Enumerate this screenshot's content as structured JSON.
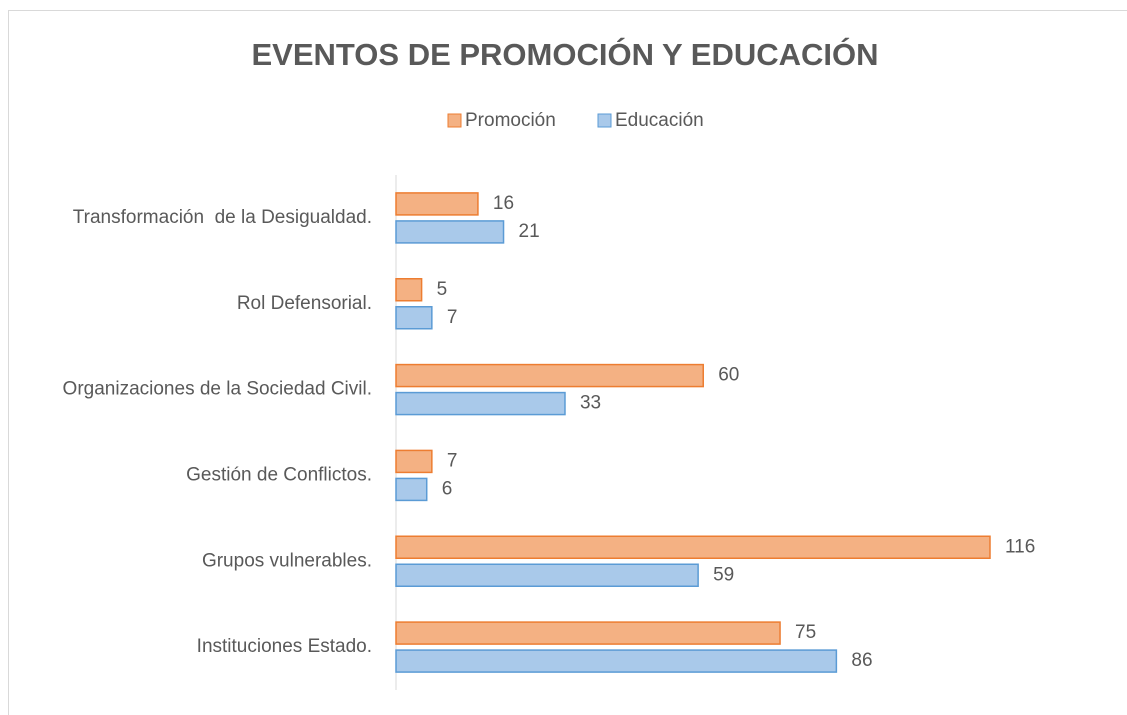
{
  "chart_data": {
    "type": "hbar",
    "title": "EVENTOS DE PROMOCIÓN Y EDUCACIÓN",
    "categories": [
      "Transformación  de la Desigualdad.",
      "Rol Defensorial.",
      "Organizaciones de la Sociedad Civil.",
      "Gestión de Conflictos.",
      "Grupos vulnerables.",
      "Instituciones Estado."
    ],
    "series": [
      {
        "name": "Promoción",
        "color": "#f4b183",
        "edge": "#ed7d31",
        "values": [
          16,
          5,
          60,
          7,
          116,
          75
        ]
      },
      {
        "name": "Educación",
        "color": "#a9c9ea",
        "edge": "#5b9bd5",
        "values": [
          21,
          7,
          33,
          6,
          59,
          86
        ]
      }
    ],
    "legend": "top"
  }
}
